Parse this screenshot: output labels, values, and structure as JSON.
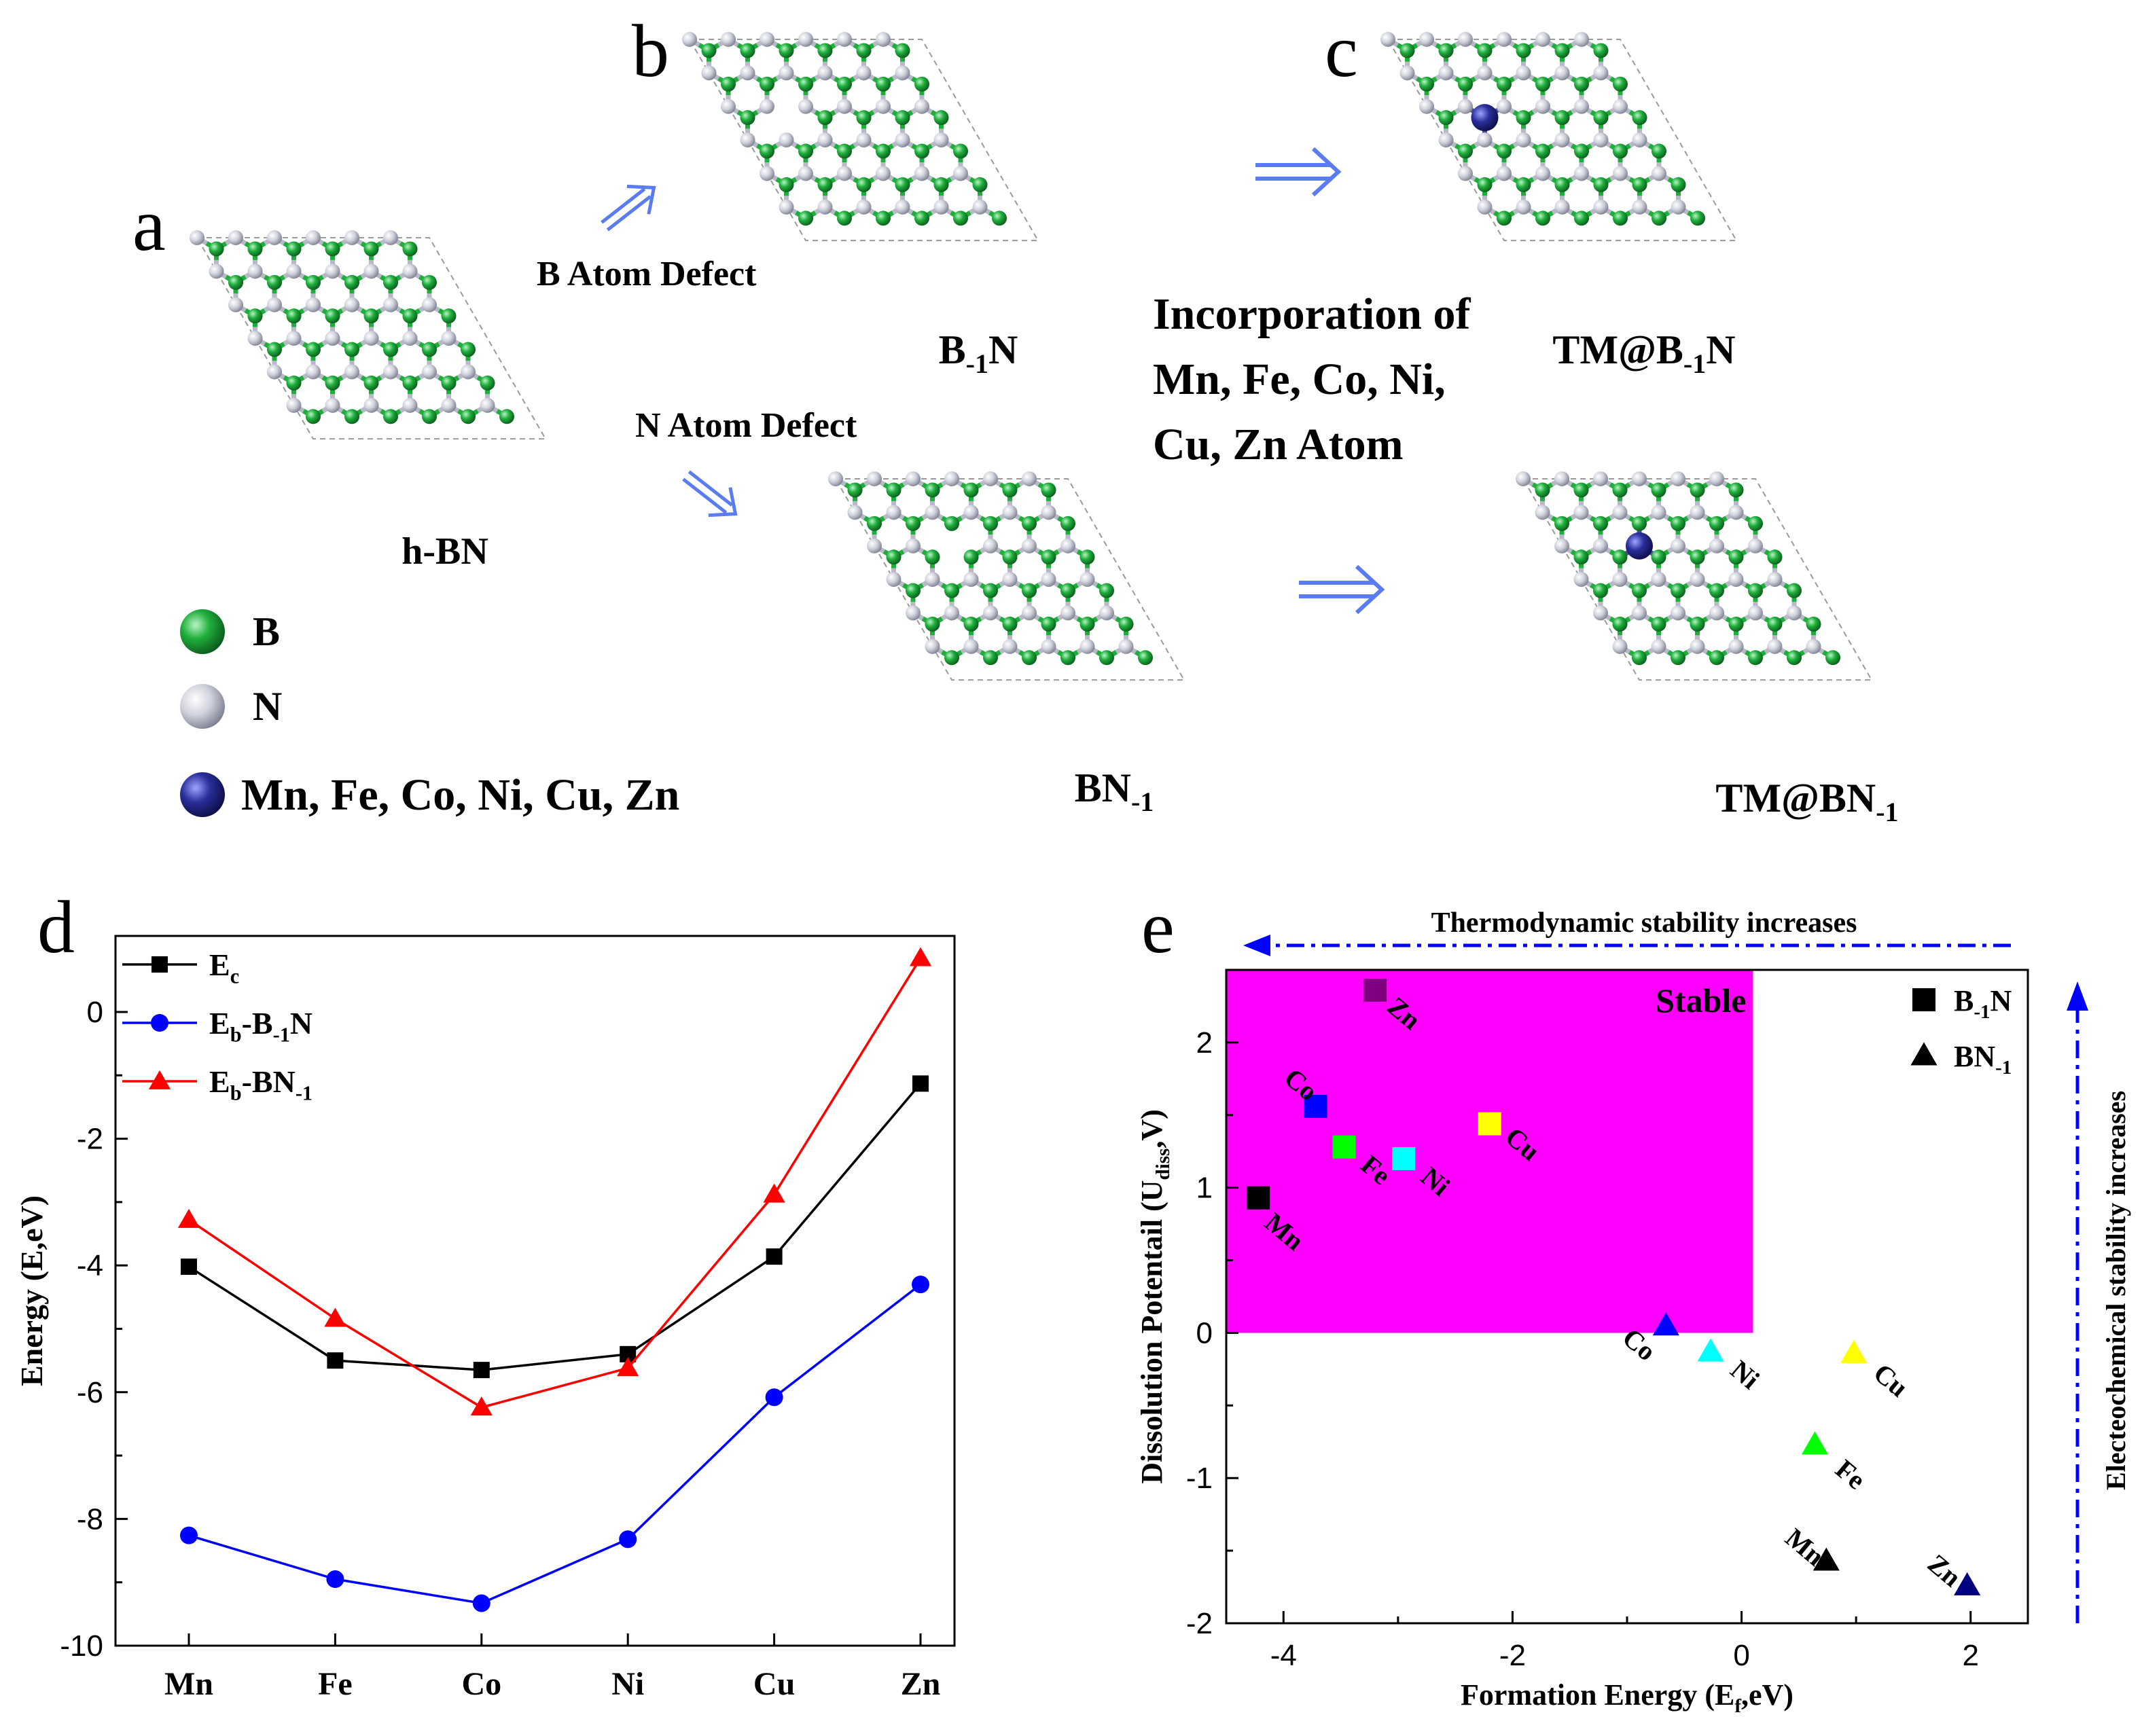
{
  "panels": {
    "a": {
      "letter": "a",
      "caption": "h-BN",
      "arrow_upper_label": "B Atom Defect",
      "arrow_lower_label": "N Atom Defect",
      "legend": [
        {
          "label": "B",
          "color": "#1fae3c"
        },
        {
          "label": "N",
          "color": "#c9cbd6"
        },
        {
          "label": "Mn, Fe, Co, Ni, Cu, Zn",
          "color": "#23278f"
        }
      ]
    },
    "b": {
      "letter": "b",
      "caption_top": {
        "base": "B",
        "sub": "-1",
        "tail": "N"
      },
      "caption_bottom": {
        "base": "BN",
        "sub": "-1",
        "tail": ""
      }
    },
    "middle_text": [
      "Incorporation of",
      "Mn, Fe, Co, Ni,",
      "Cu, Zn Atom"
    ],
    "c": {
      "letter": "c",
      "caption_top": {
        "base": "TM@B",
        "sub": "-1",
        "tail": "N"
      },
      "caption_bottom": {
        "base": "TM@BN",
        "sub": "-1",
        "tail": ""
      }
    }
  },
  "colors": {
    "boron": "#1fae3c",
    "nitrogen": "#c9cbd6",
    "tm": "#23278f",
    "arrow": "#5b7cf0",
    "stable_region": "#ff00ff"
  },
  "chart_data": [
    {
      "panel": "d",
      "type": "line",
      "categories": [
        "Mn",
        "Fe",
        "Co",
        "Ni",
        "Cu",
        "Zn"
      ],
      "ylabel": "Energy (E,eV)",
      "ylim": [
        -10,
        1.2
      ],
      "yticks": [
        -10,
        -8,
        -6,
        -4,
        -2,
        0
      ],
      "ytick_labels": [
        "-10",
        "-8",
        "-6",
        "-4",
        "-2",
        "0"
      ],
      "series": [
        {
          "name": "E",
          "name_sub": "c",
          "name_tail": "",
          "marker": "square",
          "color": "#000000",
          "values": [
            -4.02,
            -5.5,
            -5.65,
            -5.4,
            -3.86,
            -1.13
          ]
        },
        {
          "name": "E",
          "name_sub": "b",
          "name_tail": "-B",
          "name_tail_sub": "-1",
          "name_end": "N",
          "marker": "circle",
          "color": "#0000ff",
          "values": [
            -8.26,
            -8.95,
            -9.33,
            -8.32,
            -6.08,
            -4.3
          ]
        },
        {
          "name": "E",
          "name_sub": "b",
          "name_tail": "-BN",
          "name_tail_sub": "-1",
          "name_end": "",
          "marker": "triangle",
          "color": "#ff0000",
          "values": [
            -3.28,
            -4.84,
            -6.24,
            -5.62,
            -2.88,
            0.85
          ]
        }
      ]
    },
    {
      "panel": "e",
      "type": "scatter",
      "xlabel": {
        "base": "Formation Energy (E",
        "sub": "f",
        "tail": ",eV)"
      },
      "ylabel": {
        "base": "Dissolution Potentail (U",
        "sub": "diss",
        "tail": ",V)"
      },
      "xlim": [
        -4.5,
        2.5
      ],
      "ylim": [
        -2,
        2.5
      ],
      "xticks": [
        -4,
        -2,
        0,
        2
      ],
      "xtick_labels": [
        "-4",
        "-2",
        "0",
        "2"
      ],
      "yticks": [
        -2,
        -1,
        0,
        1,
        2
      ],
      "ytick_labels": [
        "-2",
        "-1",
        "0",
        "1",
        "2"
      ],
      "stable_region": {
        "x": [
          -4.5,
          0.1
        ],
        "y": [
          0,
          2.5
        ],
        "label": "Stable"
      },
      "top_arrow_label": "Thermodynamic stability increases",
      "right_arrow_label": "Electeochemical stability increases",
      "legend": [
        {
          "marker": "square",
          "base": "B",
          "sub": "-1",
          "tail": "N"
        },
        {
          "marker": "triangle",
          "base": "BN",
          "sub": "-1",
          "tail": ""
        }
      ],
      "series": [
        {
          "name": "B-1N",
          "marker": "square",
          "points": [
            {
              "label": "Mn",
              "x": -4.22,
              "y": 0.93,
              "color": "#000000"
            },
            {
              "label": "Co",
              "x": -3.72,
              "y": 1.56,
              "color": "#0000ff"
            },
            {
              "label": "Fe",
              "x": -3.47,
              "y": 1.28,
              "color": "#00ff00"
            },
            {
              "label": "Ni",
              "x": -2.95,
              "y": 1.2,
              "color": "#00ffff"
            },
            {
              "label": "Cu",
              "x": -2.2,
              "y": 1.44,
              "color": "#ffff00"
            },
            {
              "label": "Zn",
              "x": -3.2,
              "y": 2.36,
              "color": "#800080"
            }
          ]
        },
        {
          "name": "BN-1",
          "marker": "triangle",
          "points": [
            {
              "label": "Co",
              "x": -0.66,
              "y": 0.05,
              "color": "#0000ff"
            },
            {
              "label": "Ni",
              "x": -0.27,
              "y": -0.13,
              "color": "#00ffff"
            },
            {
              "label": "Cu",
              "x": 0.98,
              "y": -0.14,
              "color": "#ffff00"
            },
            {
              "label": "Fe",
              "x": 0.64,
              "y": -0.77,
              "color": "#00ff00"
            },
            {
              "label": "Mn",
              "x": 0.74,
              "y": -1.57,
              "color": "#000000"
            },
            {
              "label": "Zn",
              "x": 1.97,
              "y": -1.74,
              "color": "#000080"
            }
          ]
        }
      ]
    }
  ]
}
